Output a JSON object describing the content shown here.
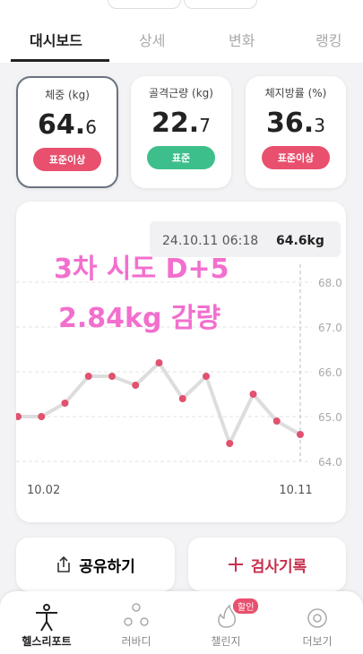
{
  "tabs": [
    "대시보드",
    "상세",
    "변화",
    "랭킹"
  ],
  "cards": [
    {
      "label": "체중 (kg)",
      "value_int": "64.",
      "value_dec": "6",
      "badge": "표준이상"
    },
    {
      "label": "골격근량 (kg)",
      "value_int": "22.",
      "value_dec": "7",
      "badge": "표준"
    },
    {
      "label": "체지방률 (%)",
      "value_int": "36.",
      "value_dec": "3",
      "badge": "표준이상"
    }
  ],
  "chart_data": {
    "type": "line",
    "categories": [
      "10.02",
      null,
      null,
      null,
      null,
      null,
      null,
      null,
      null,
      null,
      null,
      null,
      "10.11"
    ],
    "values": [
      65.0,
      65.0,
      65.3,
      65.9,
      65.9,
      65.7,
      66.2,
      65.4,
      65.9,
      64.4,
      65.5,
      64.9,
      64.6
    ],
    "color": "#e0526f",
    "ylim": [
      64,
      68
    ],
    "yticks": [
      {
        "value": 64,
        "label": "64.0"
      },
      {
        "value": 65,
        "label": "65.0"
      },
      {
        "value": 66,
        "label": "66.0"
      },
      {
        "value": 67,
        "label": "67.0"
      },
      {
        "value": 68,
        "label": "68.0"
      }
    ],
    "grid": true,
    "tooltip": {
      "time": "24.10.11 06:18",
      "value": "64.6kg"
    },
    "annotations": [
      "3차 시도 D+5",
      "2.84kg 감량"
    ]
  },
  "buttons": [
    "공유하기",
    "검사기록"
  ],
  "nav": [
    "헬스리포트",
    "러바디",
    "챌린지",
    "더보기"
  ],
  "nav_badge": "할인"
}
